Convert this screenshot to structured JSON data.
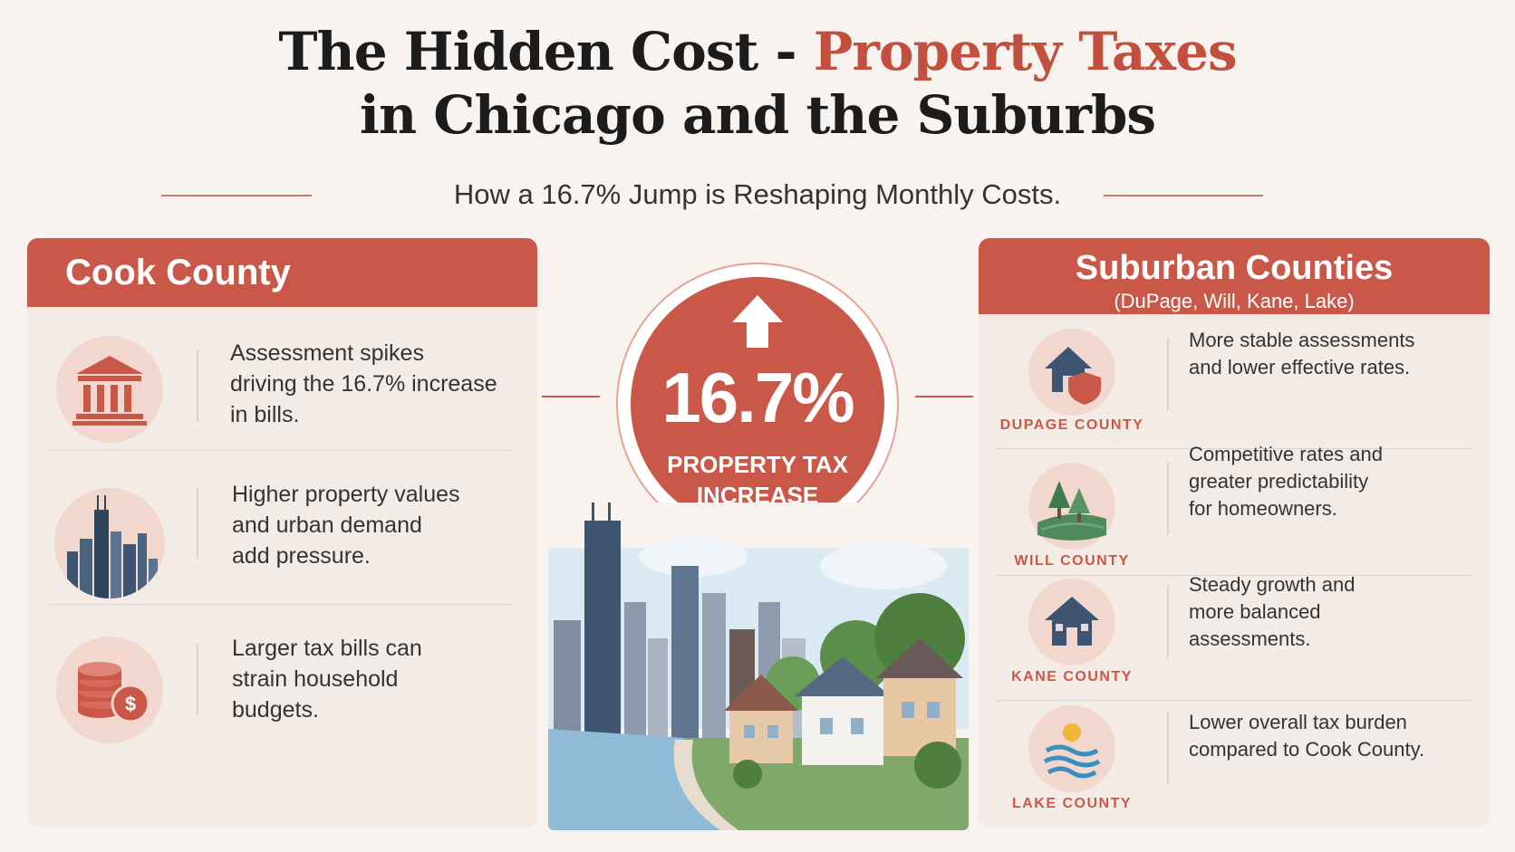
{
  "header": {
    "title_part1": "The Hidden Cost - ",
    "title_accent": "Property Taxes",
    "title_line2": "in Chicago and the Suburbs",
    "subtitle": "How a 16.7% Jump is Reshaping Monthly Costs."
  },
  "cook": {
    "heading": "Cook County",
    "items": [
      {
        "icon": "courthouse-icon",
        "text_lines": [
          "Assessment spikes",
          "driving the 16.7% increase",
          "in bills."
        ]
      },
      {
        "icon": "skyline-icon",
        "text_lines": [
          "Higher property values",
          "and urban demand",
          "add pressure."
        ]
      },
      {
        "icon": "coins-dollar-icon",
        "text_lines": [
          "Larger tax bills can",
          "strain household",
          "budgets."
        ]
      }
    ]
  },
  "center": {
    "percent": "16.7%",
    "label_line1": "PROPERTY TAX",
    "label_line2": "INCREASE",
    "arrow_icon": "up-arrow-icon"
  },
  "suburban": {
    "heading": "Suburban Counties",
    "subheading": "(DuPage, Will, Kane, Lake)",
    "items": [
      {
        "county": "DUPAGE COUNTY",
        "icon": "house-shield-icon",
        "text_lines": [
          "More stable assessments",
          "and lower effective rates."
        ]
      },
      {
        "county": "WILL COUNTY",
        "icon": "trees-field-icon",
        "text_lines": [
          "Competitive rates and",
          "greater predictability",
          "for homeowners."
        ]
      },
      {
        "county": "KANE COUNTY",
        "icon": "house-icon",
        "text_lines": [
          "Steady growth and",
          "more balanced",
          "assessments."
        ]
      },
      {
        "county": "LAKE COUNTY",
        "icon": "sun-waves-icon",
        "text_lines": [
          "Lower overall tax burden",
          "compared to Cook County."
        ]
      }
    ]
  },
  "colors": {
    "accent": "#c95848",
    "title_accent": "#c2503f",
    "panel_bg": "#f3ece6",
    "page_bg": "#f8f3ef"
  }
}
